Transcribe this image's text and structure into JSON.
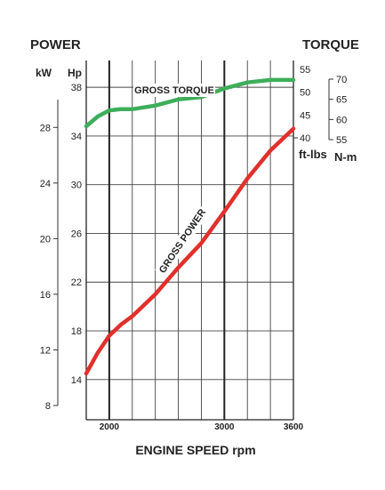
{
  "chart_data": {
    "type": "line",
    "headers": {
      "power": "POWER",
      "torque": "TORQUE"
    },
    "units": {
      "kw": "kW",
      "hp": "Hp",
      "ftlbs": "ft-lbs",
      "nm": "N-m"
    },
    "xlabel": "ENGINE SPEED rpm",
    "x_range": [
      1800,
      3600
    ],
    "x_ticks": [
      2000,
      3000,
      3600
    ],
    "axes": {
      "kw": {
        "range": [
          8,
          30
        ],
        "ticks": [
          8,
          12,
          16,
          20,
          24,
          28
        ]
      },
      "hp": {
        "range": [
          10.7,
          40.2
        ],
        "ticks": [
          14,
          18,
          22,
          26,
          30,
          34,
          38
        ]
      },
      "ftlbs": {
        "range": [
          40,
          55
        ],
        "ticks": [
          40,
          45,
          50,
          55
        ]
      },
      "nm": {
        "range": [
          55,
          70
        ],
        "ticks": [
          55,
          60,
          65,
          70
        ]
      }
    },
    "series": [
      {
        "name": "GROSS TORQUE",
        "color": "#3dae5a",
        "axis": "hp",
        "x": [
          1800,
          1900,
          2000,
          2100,
          2200,
          2400,
          2600,
          2800,
          3000,
          3200,
          3400,
          3600
        ],
        "y": [
          34.8,
          35.6,
          36.1,
          36.2,
          36.2,
          36.5,
          37.0,
          37.2,
          37.9,
          38.4,
          38.6,
          38.6
        ]
      },
      {
        "name": "GROSS POWER",
        "color": "#e0302c",
        "axis": "hp",
        "x": [
          1800,
          1900,
          2000,
          2100,
          2200,
          2400,
          2600,
          2800,
          3000,
          3200,
          3400,
          3600
        ],
        "y": [
          14.5,
          16.2,
          17.6,
          18.5,
          19.2,
          21.0,
          23.2,
          25.2,
          27.8,
          30.5,
          32.8,
          34.6
        ]
      }
    ]
  }
}
